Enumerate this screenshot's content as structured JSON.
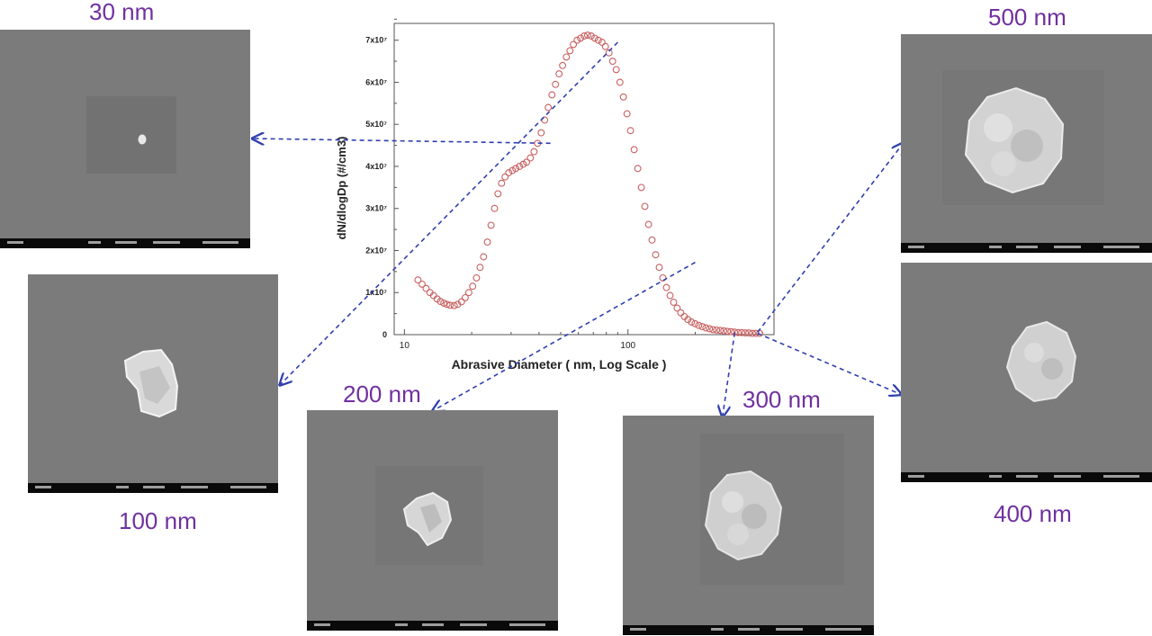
{
  "colors": {
    "label_purple": "#7030a0",
    "marker_red": "#c86060",
    "arrow_blue": "#2f3fb0",
    "sem_background": "#7b7b7b",
    "sem_info_bar": "#0a0a0a"
  },
  "labels": {
    "nm30": "30 nm",
    "nm100": "100 nm",
    "nm200": "200 nm",
    "nm300": "300 nm",
    "nm400": "400 nm",
    "nm500": "500 nm"
  },
  "sem_images": [
    {
      "id": "sem-30nm",
      "size_label": "30 nm"
    },
    {
      "id": "sem-100nm",
      "size_label": "100 nm"
    },
    {
      "id": "sem-200nm",
      "size_label": "200 nm"
    },
    {
      "id": "sem-300nm",
      "size_label": "300 nm"
    },
    {
      "id": "sem-400nm",
      "size_label": "400 nm"
    },
    {
      "id": "sem-500nm",
      "size_label": "500 nm"
    }
  ],
  "chart_data": {
    "type": "scatter",
    "title": "",
    "xlabel": "Abrasive Diameter ( nm, Log Scale )",
    "ylabel": "dN/dlogDp (#/cm3)",
    "xscale": "log",
    "xlim": [
      9,
      450
    ],
    "ylim": [
      0,
      7.4
    ],
    "y_unit_exponent": 7,
    "x_ticks": [
      10,
      100
    ],
    "x_tick_labels": [
      "10",
      "100"
    ],
    "y_ticks": [
      0,
      1,
      2,
      3,
      4,
      5,
      6,
      7
    ],
    "y_tick_labels": [
      "0",
      "1x10⁷",
      "2x10⁷",
      "3x10⁷",
      "4x10⁷",
      "5x10⁷",
      "6x10⁷",
      "7x10⁷"
    ],
    "marker": "open-circle",
    "grid": false,
    "series": [
      {
        "x": [
          11.5,
          12,
          12.5,
          13,
          13.5,
          14,
          14.5,
          15,
          15.5,
          16,
          16.7,
          17.3,
          18,
          18.7,
          19.4,
          20.2,
          21,
          21.8,
          22.6,
          23.5,
          24.4,
          25.3,
          26.2,
          27.2,
          28.2,
          29.3,
          30.4,
          31.5,
          32.7,
          34,
          35.2,
          36.6,
          38,
          39.4,
          40.9,
          42.4,
          44,
          45.7,
          47.4,
          49.2,
          51,
          53,
          55,
          57,
          59.2,
          61.4,
          63.7,
          66,
          68.5,
          71,
          73.7,
          76.5,
          79.3,
          82.3,
          85.4,
          88.6,
          92,
          95.4,
          99,
          102.7,
          106.6,
          110.6,
          114.8,
          119,
          123.6,
          128.2,
          133,
          138,
          143.2,
          148.6,
          154.2,
          160,
          166,
          172.2,
          178.7,
          185.4,
          192.4,
          199.6,
          207.1,
          214.9,
          223,
          231.4,
          240.1,
          249.1,
          258.5,
          268.2,
          278.3,
          288.8,
          299.6,
          310.9,
          322.6,
          334.7,
          347.3,
          360.4,
          374,
          388
        ],
        "y": [
          1.3,
          1.2,
          1.1,
          1.0,
          0.93,
          0.85,
          0.79,
          0.75,
          0.72,
          0.7,
          0.69,
          0.72,
          0.78,
          0.88,
          1.0,
          1.15,
          1.35,
          1.6,
          1.85,
          2.2,
          2.6,
          3.0,
          3.35,
          3.6,
          3.75,
          3.85,
          3.9,
          3.95,
          4.0,
          4.05,
          4.1,
          4.2,
          4.35,
          4.55,
          4.8,
          5.1,
          5.4,
          5.7,
          5.95,
          6.2,
          6.4,
          6.6,
          6.75,
          6.9,
          7.0,
          7.05,
          7.1,
          7.12,
          7.1,
          7.05,
          7.0,
          6.95,
          6.85,
          6.7,
          6.5,
          6.3,
          6.0,
          5.65,
          5.25,
          4.85,
          4.4,
          3.95,
          3.5,
          3.05,
          2.62,
          2.25,
          1.9,
          1.6,
          1.35,
          1.12,
          0.93,
          0.77,
          0.63,
          0.52,
          0.43,
          0.36,
          0.3,
          0.26,
          0.22,
          0.19,
          0.16,
          0.14,
          0.12,
          0.11,
          0.1,
          0.09,
          0.08,
          0.07,
          0.06,
          0.05,
          0.05,
          0.04,
          0.04,
          0.03,
          0.03,
          0.03
        ]
      }
    ],
    "arrows": [
      {
        "from_x": 45,
        "from_y": 4.55,
        "to_image": "30 nm"
      },
      {
        "from_x": 90,
        "from_y": 6.95,
        "to_image": "100 nm"
      },
      {
        "from_x": 200,
        "from_y": 1.72,
        "to_image": "200 nm"
      },
      {
        "from_x": 300,
        "from_y": 0.05,
        "to_image": "300 nm"
      },
      {
        "from_x": 380,
        "from_y": 0.03,
        "to_image": "400 nm"
      },
      {
        "from_x": 380,
        "from_y": 0.06,
        "to_image": "500 nm"
      }
    ]
  }
}
